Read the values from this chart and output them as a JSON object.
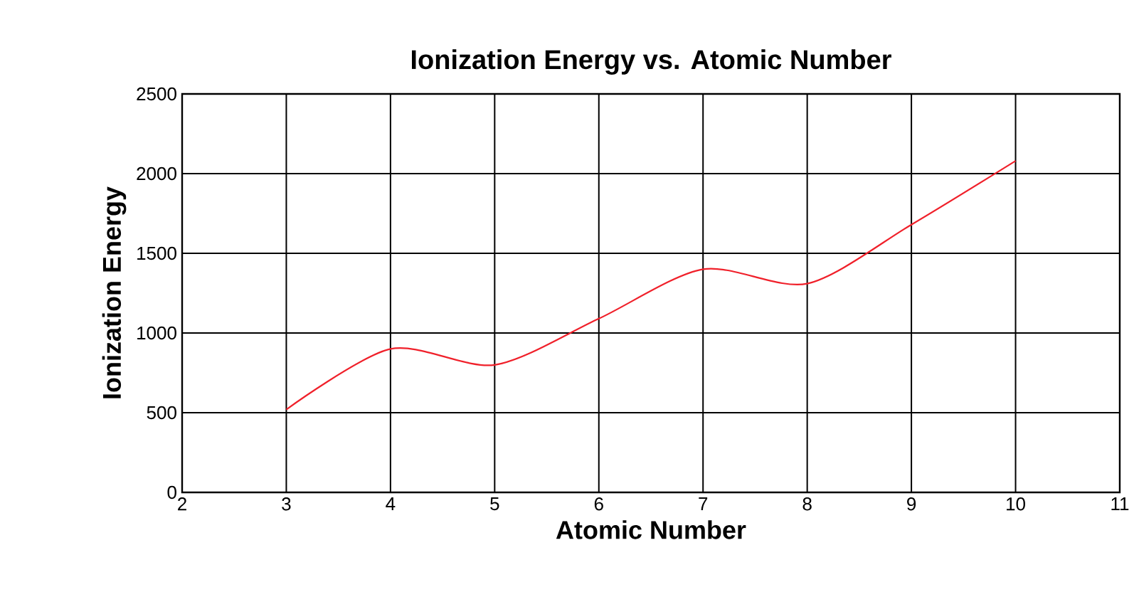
{
  "chart_data": {
    "type": "line",
    "title": "Ionization Energy vs. Atomic Number",
    "xlabel": "Atomic Number",
    "ylabel": "Ionization Energy",
    "x": [
      3,
      4,
      5,
      6,
      7,
      8,
      9,
      10
    ],
    "series": [
      {
        "color": "#f0202a",
        "values": [
          520,
          900,
          800,
          1090,
          1400,
          1310,
          1680,
          2080
        ]
      }
    ],
    "xlim": [
      2,
      11
    ],
    "ylim": [
      0,
      2500
    ],
    "xticks": [
      2,
      3,
      4,
      5,
      6,
      7,
      8,
      9,
      10,
      11
    ],
    "yticks": [
      0,
      500,
      1000,
      1500,
      2000,
      2500
    ],
    "grid": true,
    "marker": "none",
    "line_style": "solid"
  }
}
